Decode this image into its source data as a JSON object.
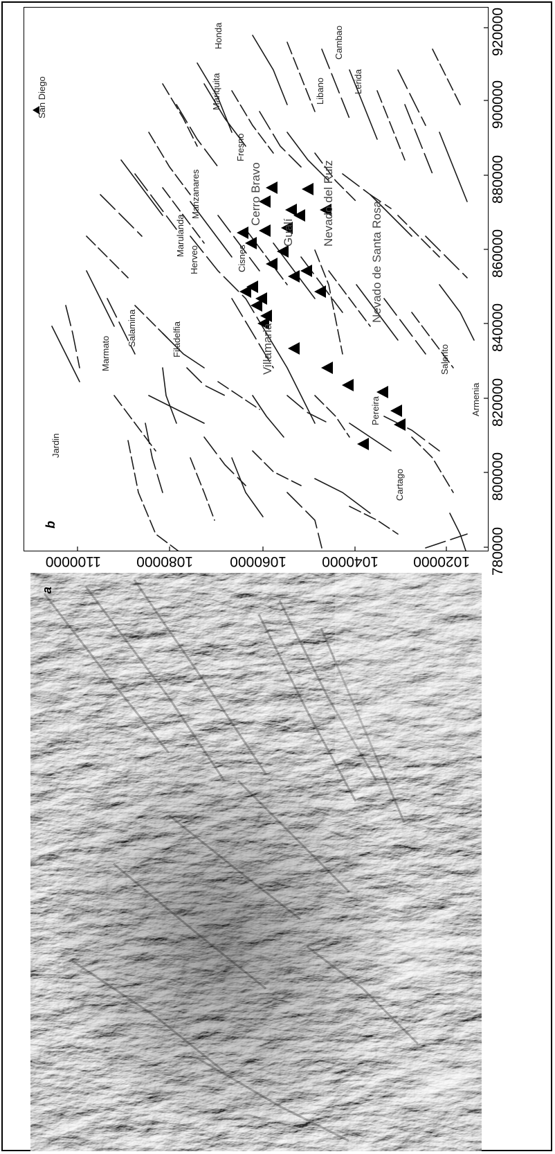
{
  "figure": {
    "panel_a_label": "a",
    "panel_b_label": "b"
  },
  "map_b": {
    "x_axis_ticks": [
      "780000",
      "800000",
      "820000",
      "840000",
      "860000",
      "880000",
      "900000",
      "920000"
    ],
    "y_axis_ticks": [
      "1020000",
      "1040000",
      "1060000",
      "1080000",
      "1100000"
    ],
    "places": [
      {
        "id": "san-diego",
        "name": "San Diego"
      },
      {
        "id": "honda",
        "name": "Honda"
      },
      {
        "id": "cambao",
        "name": "Cambao"
      },
      {
        "id": "mariquita",
        "name": "Mariquita"
      },
      {
        "id": "libano",
        "name": "Libano"
      },
      {
        "id": "lerida",
        "name": "Lerida"
      },
      {
        "id": "fresno",
        "name": "Fresno"
      },
      {
        "id": "manzanares",
        "name": "Manzanares"
      },
      {
        "id": "cerro-bravo",
        "name": "Cerro Bravo"
      },
      {
        "id": "marulanda",
        "name": "Marulanda"
      },
      {
        "id": "herveo",
        "name": "Herveo"
      },
      {
        "id": "cisnes",
        "name": "Cisnes"
      },
      {
        "id": "gualí",
        "name": "Gualí"
      },
      {
        "id": "nevado-del-ruiz",
        "name": "Nevado del Ruiz"
      },
      {
        "id": "nevado-santa-rosa",
        "name": "Nevado de Santa Rosa"
      },
      {
        "id": "salamina",
        "name": "Salamina"
      },
      {
        "id": "marmato",
        "name": "Marmato"
      },
      {
        "id": "filadelfia",
        "name": "Filadelfia"
      },
      {
        "id": "villamaria",
        "name": "Villamaria"
      },
      {
        "id": "pereira",
        "name": "Pereira"
      },
      {
        "id": "salento",
        "name": "Salento"
      },
      {
        "id": "armenia",
        "name": "Armenia"
      },
      {
        "id": "jardin",
        "name": "Jardin"
      },
      {
        "id": "cartago",
        "name": "Cartago"
      }
    ]
  },
  "colors": {
    "frame": "#000000",
    "fault_lines": "#1a1a1a",
    "volcano_marker": "#000000",
    "relief_base": "#8c8c8c"
  }
}
